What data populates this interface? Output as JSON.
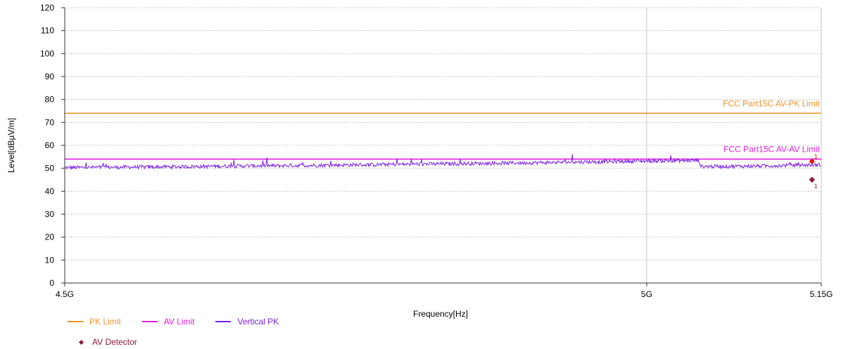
{
  "chart_data": {
    "type": "line",
    "xlabel": "Frequency[Hz]",
    "ylabel": "Level[dBµV/m]",
    "xlim": [
      4.5,
      5.15
    ],
    "ylim": [
      0,
      120
    ],
    "x_unit": "GHz",
    "x_ticks": [
      {
        "value": 4.5,
        "label": "4.5G"
      },
      {
        "value": 5.0,
        "label": "5G"
      },
      {
        "value": 5.15,
        "label": "5.15G"
      }
    ],
    "y_ticks": [
      0,
      10,
      20,
      30,
      40,
      50,
      60,
      70,
      80,
      90,
      100,
      110,
      120
    ],
    "grid": true,
    "limit_lines": [
      {
        "name": "PK Limit",
        "label": "FCC Part15C AV-PK Limit",
        "value": 74,
        "color": "#f0922a"
      },
      {
        "name": "AV Limit",
        "label": "FCC Part15C AV-AV Limit",
        "value": 54,
        "color": "#e31ee3"
      }
    ],
    "series": [
      {
        "name": "Vertical PK",
        "color": "#7b22e6",
        "x": [
          4.5,
          4.55,
          4.6,
          4.65,
          4.7,
          4.75,
          4.8,
          4.85,
          4.9,
          4.95,
          5.0,
          5.045,
          5.0465,
          5.08,
          5.1,
          5.12,
          5.15
        ],
        "y": [
          50.3,
          50.5,
          50.7,
          51.0,
          51.2,
          51.5,
          51.8,
          52.1,
          52.4,
          52.8,
          53.2,
          53.4,
          50.8,
          50.9,
          51.0,
          51.3,
          51.5
        ],
        "noise": 0.8
      }
    ],
    "markers": [
      {
        "name": "AV Detector",
        "x": 5.142,
        "y": 45.0,
        "label": "1",
        "color": "#8b1a3a"
      },
      {
        "name": "PK Detector",
        "x": 5.142,
        "y": 53.0,
        "label": "1",
        "color": "#e01616"
      }
    ],
    "legend": {
      "position": "bottom-left",
      "items": [
        {
          "name": "PK Limit",
          "color": "#f0922a",
          "kind": "line"
        },
        {
          "name": "AV Limit",
          "color": "#e31ee3",
          "kind": "line"
        },
        {
          "name": "Vertical PK",
          "color": "#7b22e6",
          "kind": "line"
        },
        {
          "name": "AV Detector",
          "color": "#8b1a3a",
          "kind": "diamond"
        }
      ]
    }
  }
}
